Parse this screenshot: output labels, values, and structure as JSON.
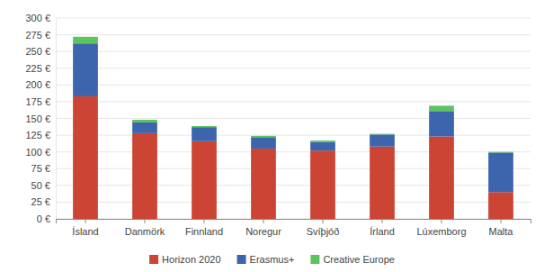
{
  "chart_data": {
    "type": "bar",
    "stacked": true,
    "grid": true,
    "legend": "bottom",
    "categories": [
      "Ísland",
      "Danmörk",
      "Finnland",
      "Noregur",
      "Svíþjóð",
      "Írland",
      "Lúxemborg",
      "Malta"
    ],
    "series": [
      {
        "name": "Horizon 2020",
        "color": "#cc4433",
        "values": [
          183,
          128,
          116,
          105,
          102,
          108,
          123,
          40
        ]
      },
      {
        "name": "Erasmus+",
        "color": "#3d65ae",
        "values": [
          79,
          16,
          21,
          17,
          13,
          18,
          38,
          59
        ]
      },
      {
        "name": "Creative Europe",
        "color": "#5cc45c",
        "values": [
          10,
          4,
          1.5,
          2,
          2,
          1,
          8,
          1
        ]
      }
    ],
    "ylim": [
      0,
      300
    ],
    "yticks": [
      {
        "value": 0,
        "label": "0 €"
      },
      {
        "value": 25,
        "label": "25 €"
      },
      {
        "value": 50,
        "label": "50 €"
      },
      {
        "value": 75,
        "label": "75 €"
      },
      {
        "value": 100,
        "label": "100 €"
      },
      {
        "value": 125,
        "label": "125 €"
      },
      {
        "value": 150,
        "label": "150 €"
      },
      {
        "value": 175,
        "label": "175 €"
      },
      {
        "value": 200,
        "label": "200 €"
      },
      {
        "value": 225,
        "label": "225 €"
      },
      {
        "value": 250,
        "label": "250 €"
      },
      {
        "value": 275,
        "label": "275 €"
      },
      {
        "value": 300,
        "label": "300 €"
      }
    ]
  }
}
